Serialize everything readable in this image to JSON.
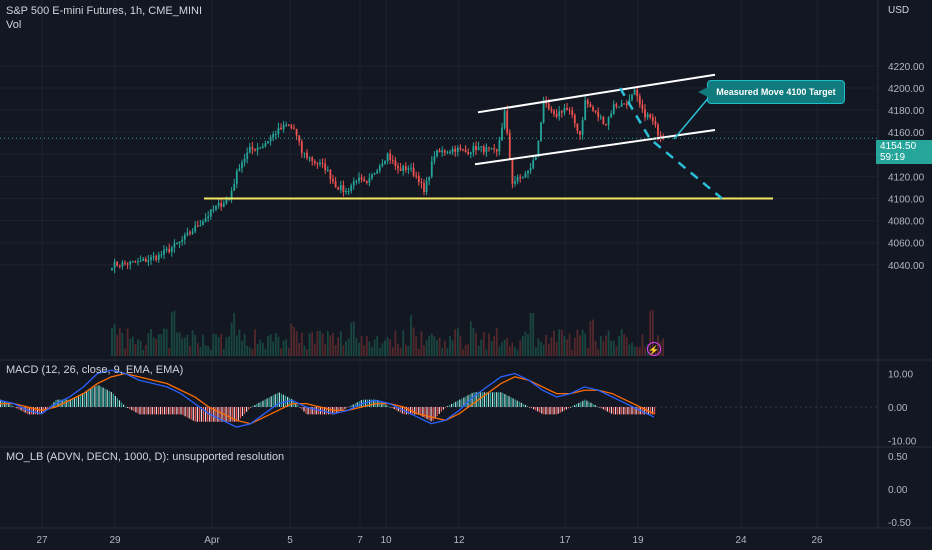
{
  "header": {
    "symbol": "S&P 500 E-mini Futures, 1h, CME_MINI",
    "volume_label": "Vol"
  },
  "price_axis": {
    "unit": "USD"
  },
  "last_price": {
    "value": "4154.50",
    "countdown": "59:19",
    "color": "#26a69a"
  },
  "annotation": {
    "text": "Measured Move 4100 Target",
    "color": "#117a7d"
  },
  "indicators": {
    "macd_label": "MACD (12, 26, close, 9, EMA, EMA)",
    "mo_label": "MO_LB (ADVN, DECN, 1000, D): unsupported resolution"
  },
  "colors": {
    "background": "#131722",
    "up": "#26a69a",
    "down": "#ef5350",
    "support": "#f5e663",
    "channel": "#ffffff",
    "projection": "#2bbfd6",
    "macd_line": "#2962ff",
    "signal_line": "#ff6d00"
  },
  "chart_data": [
    {
      "type": "candlestick",
      "title": "S&P 500 E-mini Futures, 1h, CME_MINI",
      "x_tick_labels": [
        "27",
        "29",
        "Apr",
        "5",
        "7",
        "10",
        "12",
        "17",
        "19",
        "24",
        "26"
      ],
      "y_tick_labels": [
        "4040.00",
        "4060.00",
        "4080.00",
        "4100.00",
        "4120.00",
        "4140.00",
        "4160.00",
        "4180.00",
        "4200.00",
        "4220.00"
      ],
      "ylim": [
        4035,
        4228
      ],
      "anchor_closes": [
        [
          0,
          4040
        ],
        [
          10,
          4042
        ],
        [
          18,
          4048
        ],
        [
          26,
          4060
        ],
        [
          34,
          4078
        ],
        [
          40,
          4092
        ],
        [
          45,
          4100
        ],
        [
          49,
          4130
        ],
        [
          53,
          4144
        ],
        [
          58,
          4148
        ],
        [
          63,
          4160
        ],
        [
          67,
          4166
        ],
        [
          70,
          4163
        ],
        [
          73,
          4142
        ],
        [
          78,
          4133
        ],
        [
          82,
          4128
        ],
        [
          86,
          4112
        ],
        [
          90,
          4106
        ],
        [
          94,
          4118
        ],
        [
          98,
          4112
        ],
        [
          102,
          4128
        ],
        [
          106,
          4140
        ],
        [
          110,
          4126
        ],
        [
          114,
          4128
        ],
        [
          118,
          4118
        ],
        [
          120,
          4105
        ],
        [
          124,
          4140
        ],
        [
          128,
          4143
        ],
        [
          132,
          4145
        ],
        [
          136,
          4142
        ],
        [
          140,
          4146
        ],
        [
          144,
          4144
        ],
        [
          148,
          4141
        ],
        [
          151,
          4178
        ],
        [
          154,
          4115
        ],
        [
          157,
          4118
        ],
        [
          160,
          4124
        ],
        [
          163,
          4138
        ],
        [
          166,
          4186
        ],
        [
          170,
          4174
        ],
        [
          174,
          4182
        ],
        [
          176,
          4178
        ],
        [
          180,
          4158
        ],
        [
          182,
          4188
        ],
        [
          186,
          4177
        ],
        [
          190,
          4168
        ],
        [
          193,
          4184
        ],
        [
          196,
          4185
        ],
        [
          199,
          4188
        ],
        [
          201,
          4196
        ],
        [
          204,
          4178
        ],
        [
          207,
          4173
        ],
        [
          210,
          4160
        ],
        [
          212,
          4154.5
        ]
      ],
      "support_level": 4100,
      "channel_upper": {
        "from": [
          "Apr 12",
          4178
        ],
        "to": [
          "Apr 22",
          4212
        ]
      },
      "channel_lower": {
        "from": [
          "Apr 12",
          4131
        ],
        "to": [
          "Apr 22",
          4162
        ]
      },
      "projection_target": 4100,
      "last_value": 4154.5
    },
    {
      "type": "line",
      "title": "MACD (12, 26, close, 9, EMA, EMA)",
      "y_tick_labels": [
        "10.00",
        "0.00",
        "-10.00"
      ],
      "ylim": [
        -11,
        12
      ],
      "series": [
        {
          "name": "MACD",
          "values": [
            2,
            1,
            -1,
            -2,
            1,
            3,
            6,
            10,
            11,
            10,
            8,
            7,
            6,
            4,
            1,
            -2,
            -4,
            -6,
            -5,
            -2,
            1,
            2,
            0,
            -1,
            -2,
            -1,
            1,
            2,
            1,
            -1,
            -3,
            -5,
            -4,
            -1,
            3,
            6,
            9,
            10,
            8,
            5,
            3,
            4,
            6,
            5,
            3,
            1,
            -1,
            -3
          ]
        },
        {
          "name": "Signal",
          "values": [
            1,
            1,
            0,
            -1,
            0,
            2,
            4,
            7,
            9,
            10,
            9,
            8,
            7,
            5,
            3,
            0,
            -2,
            -4,
            -5,
            -3,
            -1,
            1,
            1,
            0,
            -1,
            -1,
            0,
            1,
            1,
            0,
            -2,
            -3,
            -4,
            -2,
            1,
            4,
            7,
            9,
            8,
            6,
            4,
            4,
            5,
            5,
            4,
            2,
            0,
            -2
          ]
        }
      ]
    },
    {
      "type": "line",
      "title": "MO_LB (ADVN, DECN, 1000, D): unsupported resolution",
      "y_tick_labels": [
        "0.50",
        "0.00",
        "-0.50"
      ],
      "ylim": [
        -0.6,
        0.6
      ]
    }
  ]
}
